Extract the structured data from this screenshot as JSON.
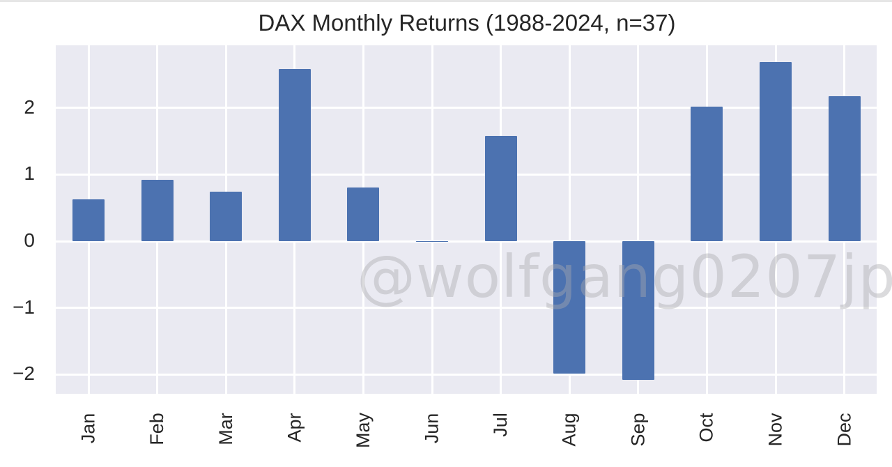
{
  "chart_data": {
    "type": "bar",
    "title": "DAX Monthly Returns (1988-2024, n=37)",
    "xlabel": "",
    "ylabel": "",
    "categories": [
      "Jan",
      "Feb",
      "Mar",
      "Apr",
      "May",
      "Jun",
      "Jul",
      "Aug",
      "Sep",
      "Oct",
      "Nov",
      "Dec"
    ],
    "values": [
      0.63,
      0.92,
      0.74,
      2.58,
      0.81,
      -0.01,
      1.58,
      -1.99,
      -2.08,
      2.02,
      2.69,
      2.18
    ],
    "ylim": [
      -2.29,
      2.94
    ],
    "yticks": [
      -2,
      -1,
      0,
      1,
      2
    ],
    "ytick_labels": [
      "−2",
      "−1",
      "0",
      "1",
      "2"
    ],
    "grid": true,
    "legend": null,
    "bar_color": "#4c72b0",
    "background_color": "#eaeaf2",
    "watermark": "@wolfgang0207jp"
  }
}
